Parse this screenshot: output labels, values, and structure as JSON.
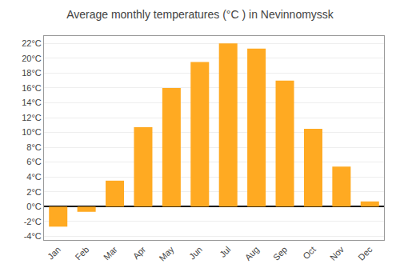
{
  "chart_data": {
    "type": "bar",
    "title": "Average monthly temperatures (°C ) in Nevinnomyssk",
    "categories": [
      "Jan",
      "Feb",
      "Mar",
      "Apr",
      "May",
      "Jun",
      "Jul",
      "Aug",
      "Sep",
      "Oct",
      "Nov",
      "Dec"
    ],
    "values": [
      -2.7,
      -0.7,
      3.5,
      10.7,
      16.0,
      19.5,
      22.0,
      21.3,
      17.0,
      10.5,
      5.4,
      0.7
    ],
    "color": "#FFAA22",
    "ylim": [
      -4.5,
      23
    ],
    "yticks": [
      {
        "value": -4,
        "label": "-4°C"
      },
      {
        "value": -2,
        "label": "-2°C"
      },
      {
        "value": 0,
        "label": "0°C"
      },
      {
        "value": 2,
        "label": "2°C"
      },
      {
        "value": 4,
        "label": "4°C"
      },
      {
        "value": 6,
        "label": "6°C"
      },
      {
        "value": 8,
        "label": "8°C"
      },
      {
        "value": 10,
        "label": "10°C"
      },
      {
        "value": 12,
        "label": "12°C"
      },
      {
        "value": 14,
        "label": "14°C"
      },
      {
        "value": 16,
        "label": "16°C"
      },
      {
        "value": 18,
        "label": "18°C"
      },
      {
        "value": 20,
        "label": "20°C"
      },
      {
        "value": 22,
        "label": "22°C"
      }
    ],
    "grid": true
  }
}
